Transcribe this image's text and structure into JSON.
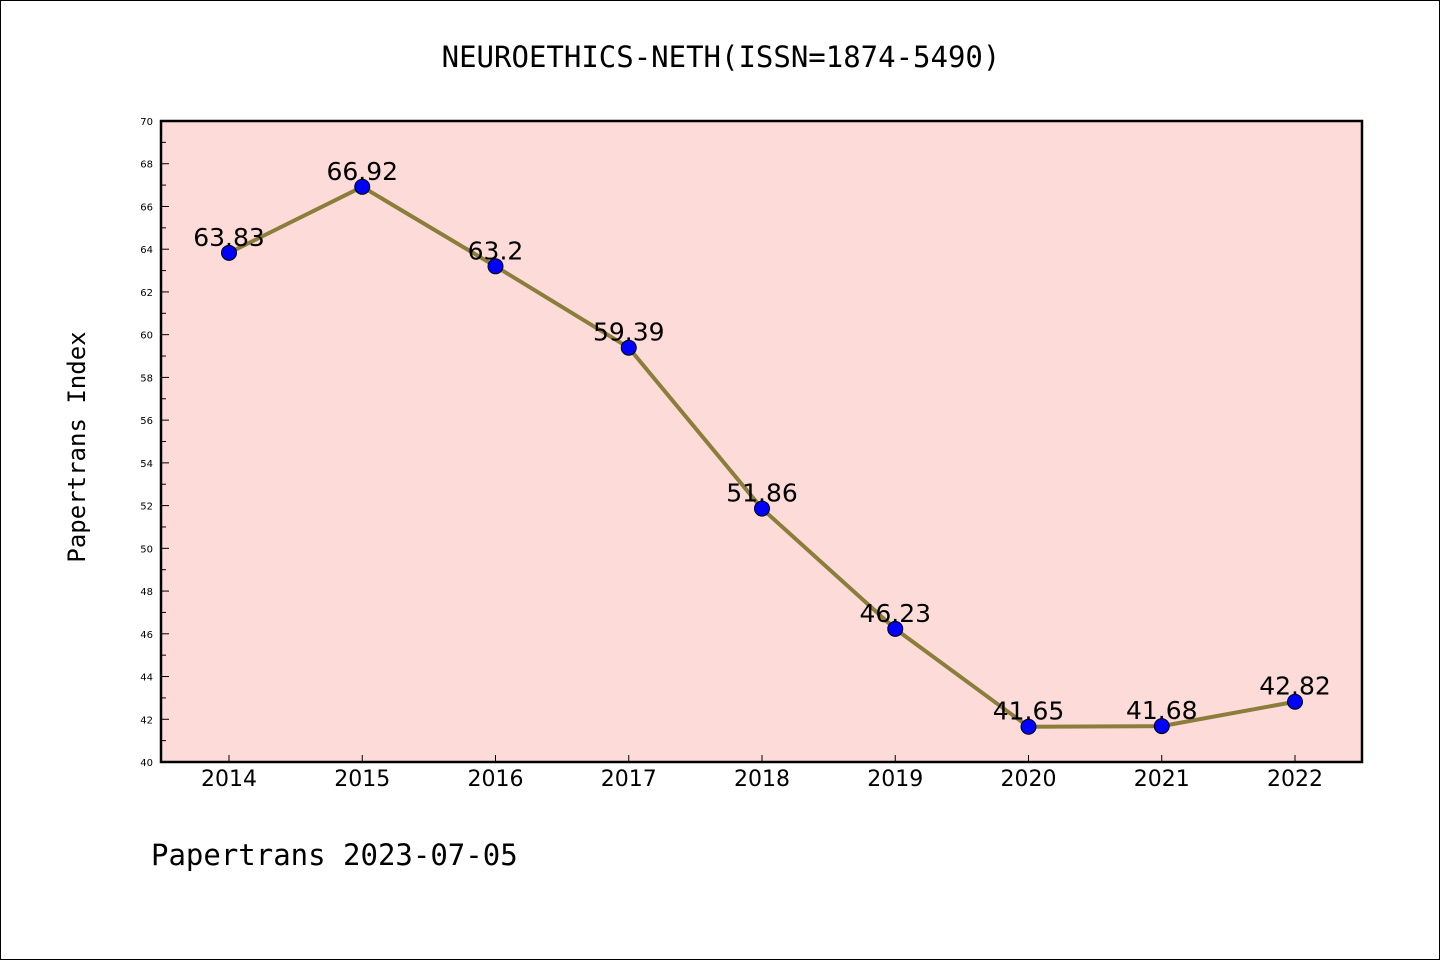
{
  "chart_data": {
    "type": "line",
    "title": "NEUROETHICS-NETH(ISSN=1874-5490)",
    "xlabel": "",
    "ylabel": "Papertrans Index",
    "x": [
      "2014",
      "2015",
      "2016",
      "2017",
      "2018",
      "2019",
      "2020",
      "2021",
      "2022"
    ],
    "series": [
      {
        "values": [
          63.83,
          66.92,
          63.2,
          59.39,
          51.86,
          46.23,
          41.65,
          41.68,
          42.82
        ],
        "labels": [
          "63.83",
          "66.92",
          "63.2",
          "59.39",
          "51.86",
          "46.23",
          "41.65",
          "41.68",
          "42.82"
        ]
      }
    ],
    "ylim": [
      40,
      70
    ],
    "yticks": [
      "40",
      "42",
      "44",
      "46",
      "48",
      "50",
      "52",
      "54",
      "56",
      "58",
      "60",
      "62",
      "64",
      "66",
      "68",
      "70"
    ],
    "grid": false,
    "colors": {
      "plot_background": "#FDDBD9",
      "line": "#8B7D3A",
      "marker": "#0000FF"
    }
  },
  "footer": "Papertrans 2023-07-05"
}
